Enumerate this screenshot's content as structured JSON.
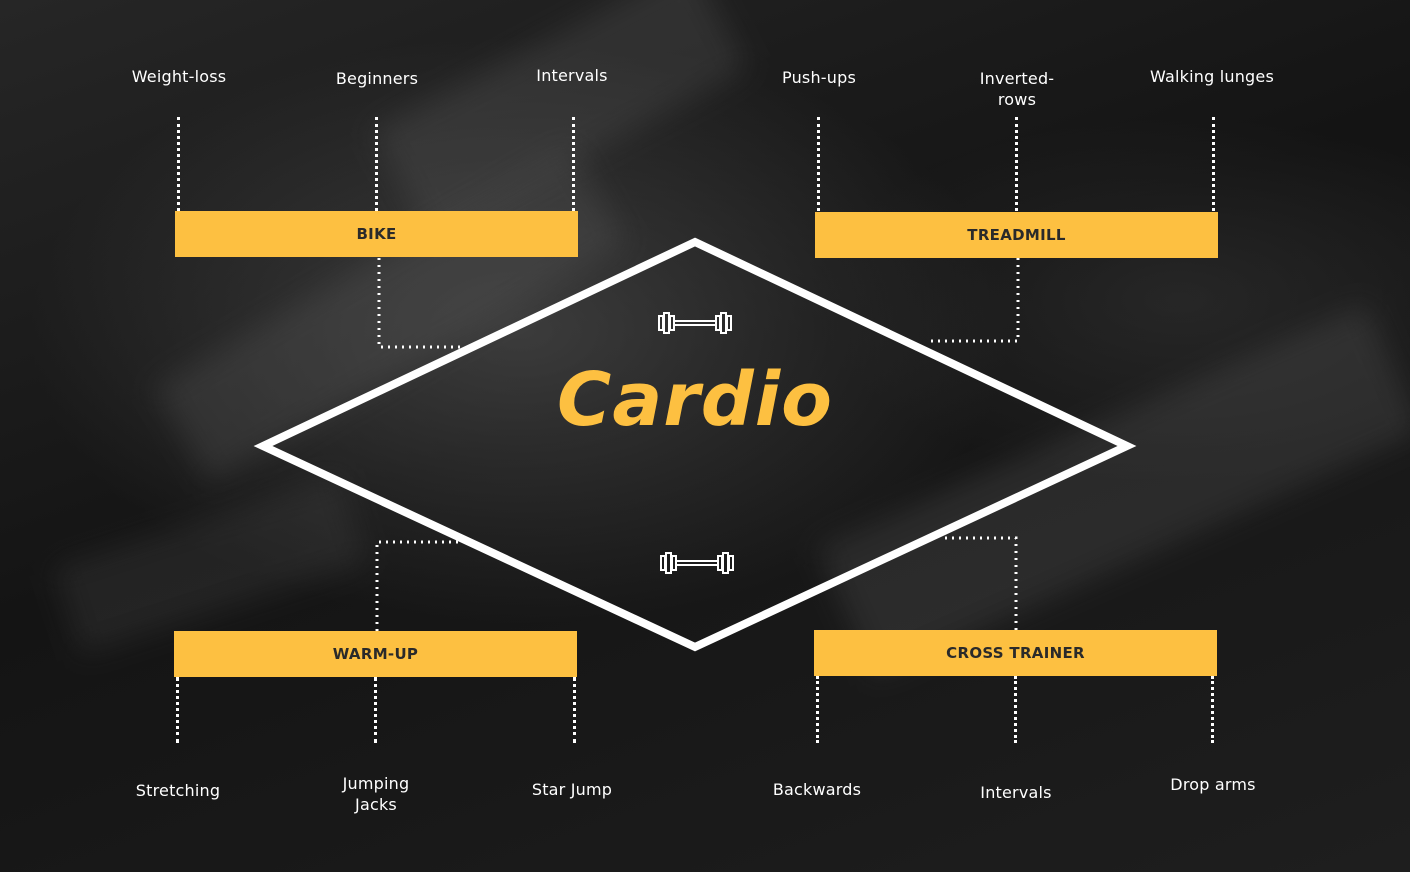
{
  "title": "Cardio",
  "colors": {
    "accent": "#fdc041",
    "line": "#ffffff",
    "background": "#1b1b1b"
  },
  "icons": [
    "dumbbell-icon",
    "dumbbell-icon"
  ],
  "groups": {
    "bike": {
      "label": "BIKE",
      "items": [
        "Weight-loss",
        "Beginners",
        "Intervals"
      ]
    },
    "treadmill": {
      "label": "TREADMILL",
      "items": [
        "Push-ups",
        "Inverted-\nrows",
        "Walking lunges"
      ]
    },
    "warmup": {
      "label": "WARM-UP",
      "items": [
        "Stretching",
        "Jumping\nJacks",
        "Star Jump"
      ]
    },
    "crosstrainer": {
      "label": "CROSS TRAINER",
      "items": [
        "Backwards",
        "Intervals",
        "Drop arms"
      ]
    }
  }
}
